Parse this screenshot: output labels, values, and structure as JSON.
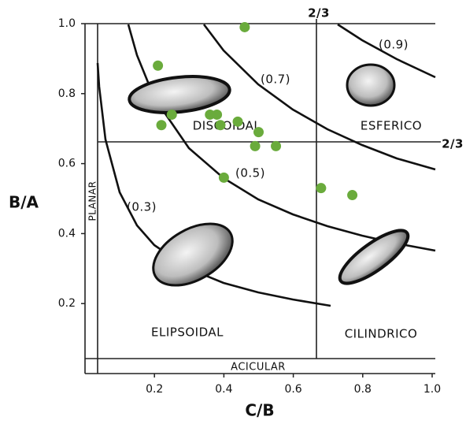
{
  "chart_data": {
    "type": "scatter",
    "x_label": "C/B",
    "y_label": "B/A",
    "x": [
      0.21,
      0.46,
      0.25,
      0.22,
      0.36,
      0.38,
      0.39,
      0.44,
      0.5,
      0.49,
      0.55,
      0.4,
      0.68,
      0.77
    ],
    "y": [
      0.88,
      0.99,
      0.74,
      0.71,
      0.74,
      0.74,
      0.71,
      0.72,
      0.69,
      0.65,
      0.65,
      0.56,
      0.53,
      0.51
    ],
    "color": "#6aab3c",
    "xlim": [
      0,
      1
    ],
    "ylim": [
      0,
      1
    ],
    "xticks": [
      0.2,
      0.4,
      0.6,
      0.8,
      {
        "value": 1,
        "label": "1.0"
      }
    ],
    "yticks": [
      0.2,
      0.4,
      0.6,
      0.8,
      {
        "value": 1,
        "label": "1.0"
      }
    ],
    "annotations": [
      "DISCOIDAL",
      "ESFERICO",
      "ELIPSOIDAL",
      "CILINDRICO",
      "PLANAR",
      "ACICULAR",
      "(0.9)",
      "(0.7)",
      "(0.5)",
      "(0.3)",
      "2/3",
      "2/3"
    ]
  }
}
